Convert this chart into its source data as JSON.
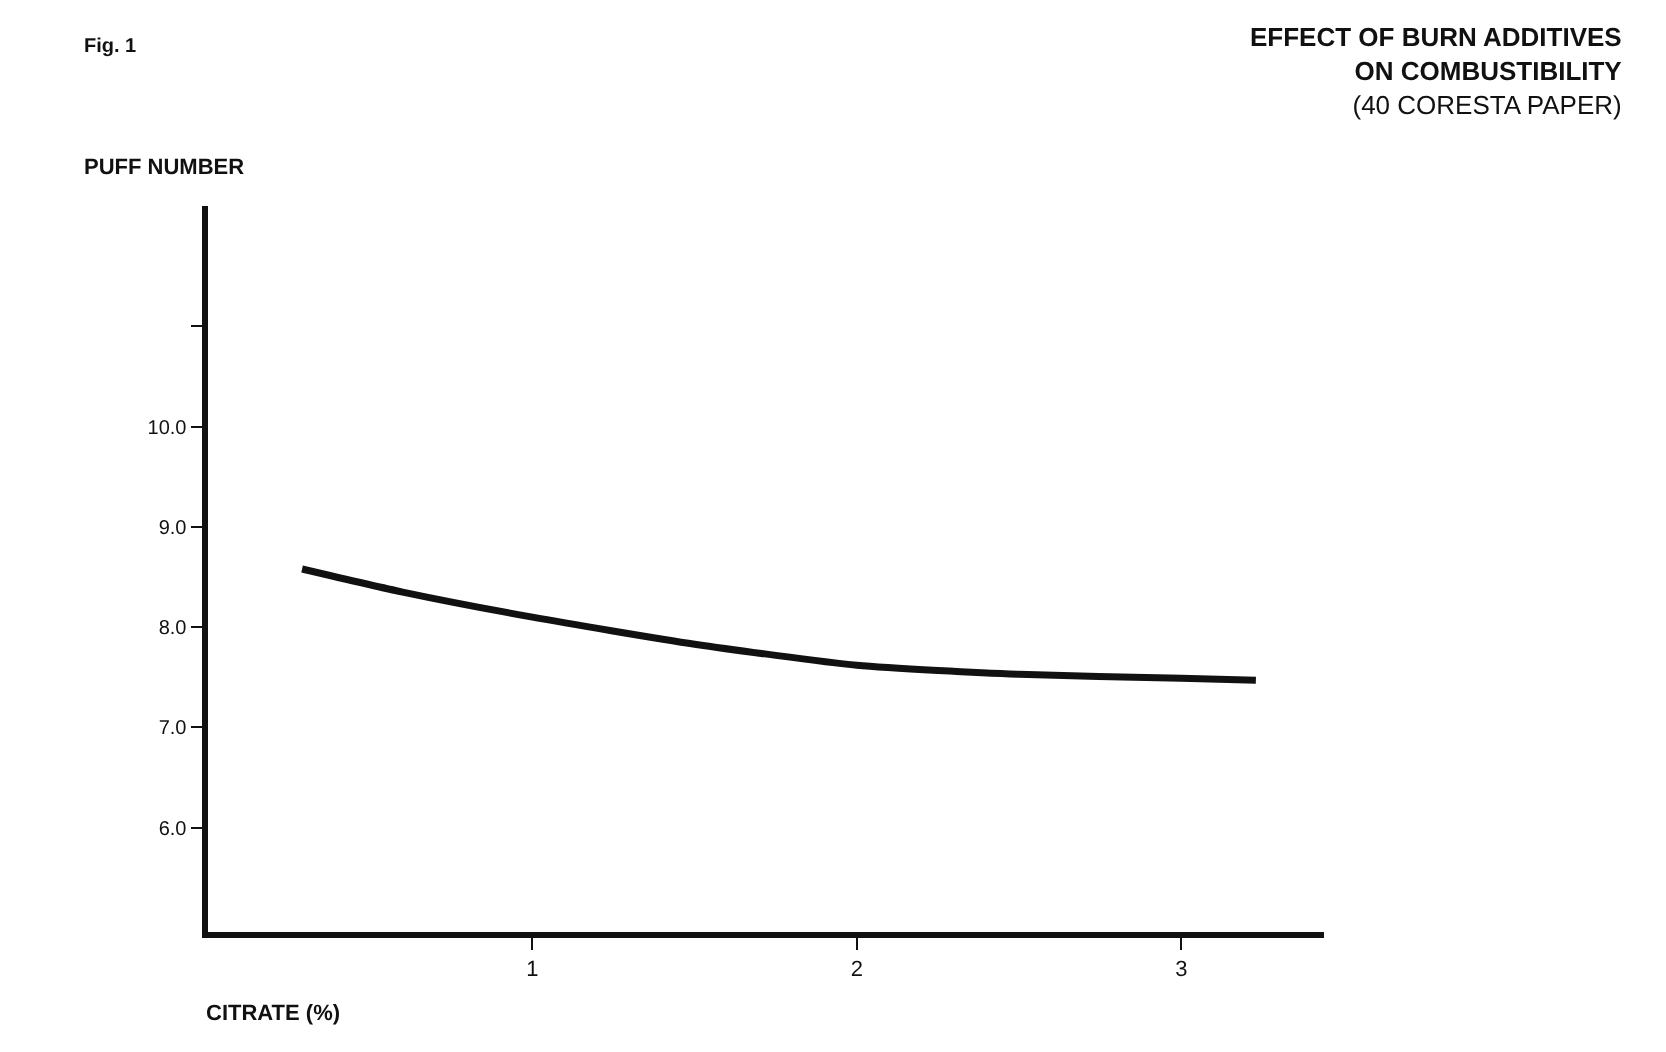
{
  "chart_data": {
    "type": "line",
    "title": "EFFECT OF BURN ADDITIVES\nON COMBUSTIBILITY",
    "subtitle": "(40 CORESTA PAPER)",
    "xlabel": "CITRATE (%)",
    "ylabel": "PUFF NUMBER",
    "annotations": [
      "Fig. 1"
    ],
    "x": [
      0.29,
      0.6,
      1.0,
      1.5,
      2.0,
      2.5,
      3.0,
      3.23
    ],
    "series": [
      {
        "color": "#111111",
        "values": [
          8.58,
          8.35,
          8.1,
          7.83,
          7.62,
          7.53,
          7.49,
          7.47
        ]
      }
    ],
    "xlim": [
      0,
      3.44
    ],
    "ylim": [
      4.96,
      12.2
    ],
    "xticks": [
      1,
      2,
      3
    ],
    "yticks": [
      {
        "value": 6,
        "label": "6.0"
      },
      {
        "value": 7,
        "label": "7.0"
      },
      {
        "value": 8,
        "label": "8.0"
      },
      {
        "value": 9,
        "label": "9.0"
      },
      {
        "value": 10,
        "label": "10.0"
      },
      {
        "value": 11,
        "label": null
      }
    ],
    "marker": "none",
    "line_style": "solid"
  }
}
